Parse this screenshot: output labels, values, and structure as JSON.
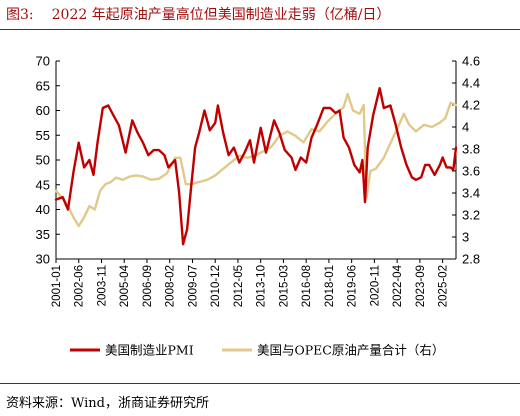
{
  "header": {
    "figure_label": "图3:",
    "title": "2022 年起原油产量高位但美国制造业走弱（亿桶/日）"
  },
  "footer": {
    "source": "资料来源：Wind，浙商证券研究所"
  },
  "colors": {
    "pmi": "#c00000",
    "oil": "#e0c98a",
    "rule": "#a50d0d"
  },
  "chart_data": {
    "type": "line",
    "title": "2022 年起原油产量高位但美国制造业走弱（亿桶/日）",
    "xlabel": "",
    "ylabel": "",
    "legend_position": "bottom",
    "grid": false,
    "x_ticks": [
      "2001-01",
      "2002-06",
      "2003-11",
      "2005-04",
      "2006-09",
      "2008-02",
      "2009-07",
      "2010-12",
      "2012-05",
      "2013-10",
      "2015-03",
      "2016-08",
      "2018-01",
      "2019-06",
      "2020-11",
      "2022-04",
      "2023-09",
      "2025-02"
    ],
    "x_range": [
      "2001-01",
      "2025-12"
    ],
    "y_left": {
      "min": 30,
      "max": 70,
      "ticks": [
        30,
        35,
        40,
        45,
        50,
        55,
        60,
        65,
        70
      ]
    },
    "y_right": {
      "min": 2.8,
      "max": 4.6,
      "ticks": [
        2.8,
        3,
        3.2,
        3.4,
        3.6,
        3.8,
        4,
        4.2,
        4.4,
        4.6
      ]
    },
    "series": [
      {
        "name": "美国制造业PMI",
        "axis": "left",
        "points": [
          [
            "2001-01",
            42.0
          ],
          [
            "2001-06",
            42.5
          ],
          [
            "2001-10",
            40.0
          ],
          [
            "2002-02",
            47.5
          ],
          [
            "2002-06",
            53.5
          ],
          [
            "2002-10",
            48.5
          ],
          [
            "2003-02",
            50.0
          ],
          [
            "2003-05",
            47.0
          ],
          [
            "2003-08",
            53.5
          ],
          [
            "2003-12",
            60.5
          ],
          [
            "2004-04",
            61.0
          ],
          [
            "2004-08",
            59.0
          ],
          [
            "2004-12",
            57.0
          ],
          [
            "2005-05",
            51.5
          ],
          [
            "2005-10",
            58.0
          ],
          [
            "2006-02",
            55.5
          ],
          [
            "2006-06",
            53.5
          ],
          [
            "2006-10",
            51.0
          ],
          [
            "2007-02",
            52.0
          ],
          [
            "2007-06",
            52.0
          ],
          [
            "2007-10",
            51.0
          ],
          [
            "2008-01",
            48.5
          ],
          [
            "2008-06",
            50.0
          ],
          [
            "2008-09",
            43.5
          ],
          [
            "2008-12",
            33.0
          ],
          [
            "2009-03",
            36.0
          ],
          [
            "2009-06",
            44.5
          ],
          [
            "2009-09",
            52.5
          ],
          [
            "2009-12",
            55.5
          ],
          [
            "2010-04",
            60.0
          ],
          [
            "2010-08",
            56.0
          ],
          [
            "2010-12",
            57.5
          ],
          [
            "2011-02",
            61.0
          ],
          [
            "2011-06",
            55.5
          ],
          [
            "2011-10",
            51.0
          ],
          [
            "2012-02",
            52.5
          ],
          [
            "2012-06",
            49.5
          ],
          [
            "2012-10",
            51.5
          ],
          [
            "2013-02",
            54.0
          ],
          [
            "2013-05",
            49.5
          ],
          [
            "2013-10",
            56.5
          ],
          [
            "2014-02",
            51.5
          ],
          [
            "2014-08",
            58.0
          ],
          [
            "2014-12",
            55.5
          ],
          [
            "2015-04",
            52.0
          ],
          [
            "2015-09",
            50.5
          ],
          [
            "2015-12",
            48.0
          ],
          [
            "2016-04",
            50.5
          ],
          [
            "2016-08",
            49.5
          ],
          [
            "2016-12",
            54.5
          ],
          [
            "2017-04",
            57.0
          ],
          [
            "2017-09",
            60.5
          ],
          [
            "2018-02",
            60.5
          ],
          [
            "2018-06",
            59.5
          ],
          [
            "2018-09",
            60.0
          ],
          [
            "2018-12",
            54.5
          ],
          [
            "2019-04",
            52.5
          ],
          [
            "2019-08",
            49.0
          ],
          [
            "2019-12",
            47.5
          ],
          [
            "2020-02",
            50.0
          ],
          [
            "2020-04",
            41.5
          ],
          [
            "2020-06",
            52.5
          ],
          [
            "2020-10",
            59.0
          ],
          [
            "2021-03",
            64.5
          ],
          [
            "2021-06",
            60.5
          ],
          [
            "2021-11",
            61.0
          ],
          [
            "2022-03",
            57.0
          ],
          [
            "2022-07",
            52.5
          ],
          [
            "2022-11",
            49.0
          ],
          [
            "2023-03",
            46.5
          ],
          [
            "2023-06",
            46.0
          ],
          [
            "2023-10",
            46.5
          ],
          [
            "2024-01",
            49.0
          ],
          [
            "2024-04",
            49.0
          ],
          [
            "2024-08",
            47.0
          ],
          [
            "2024-12",
            49.0
          ],
          [
            "2025-02",
            50.5
          ],
          [
            "2025-05",
            48.5
          ],
          [
            "2025-08",
            48.5
          ],
          [
            "2025-10",
            48.0
          ],
          [
            "2025-12",
            52.5
          ]
        ]
      },
      {
        "name": "美国与OPEC原油产量合计（右）",
        "axis": "right",
        "points": [
          [
            "2001-01",
            3.42
          ],
          [
            "2001-06",
            3.35
          ],
          [
            "2001-10",
            3.28
          ],
          [
            "2002-02",
            3.18
          ],
          [
            "2002-06",
            3.1
          ],
          [
            "2002-10",
            3.18
          ],
          [
            "2003-02",
            3.28
          ],
          [
            "2003-06",
            3.25
          ],
          [
            "2003-10",
            3.42
          ],
          [
            "2004-02",
            3.48
          ],
          [
            "2004-06",
            3.5
          ],
          [
            "2004-10",
            3.54
          ],
          [
            "2005-03",
            3.52
          ],
          [
            "2005-08",
            3.55
          ],
          [
            "2006-01",
            3.56
          ],
          [
            "2006-06",
            3.55
          ],
          [
            "2006-12",
            3.52
          ],
          [
            "2007-06",
            3.53
          ],
          [
            "2007-12",
            3.58
          ],
          [
            "2008-06",
            3.72
          ],
          [
            "2008-10",
            3.72
          ],
          [
            "2009-02",
            3.48
          ],
          [
            "2009-06",
            3.48
          ],
          [
            "2009-12",
            3.5
          ],
          [
            "2010-06",
            3.52
          ],
          [
            "2010-12",
            3.56
          ],
          [
            "2011-06",
            3.62
          ],
          [
            "2011-12",
            3.68
          ],
          [
            "2012-06",
            3.74
          ],
          [
            "2012-12",
            3.72
          ],
          [
            "2013-06",
            3.74
          ],
          [
            "2013-12",
            3.78
          ],
          [
            "2014-06",
            3.82
          ],
          [
            "2014-12",
            3.92
          ],
          [
            "2015-06",
            3.96
          ],
          [
            "2015-12",
            3.92
          ],
          [
            "2016-06",
            3.86
          ],
          [
            "2016-12",
            3.98
          ],
          [
            "2017-06",
            3.96
          ],
          [
            "2017-12",
            4.05
          ],
          [
            "2018-06",
            4.12
          ],
          [
            "2018-12",
            4.18
          ],
          [
            "2019-03",
            4.3
          ],
          [
            "2019-07",
            4.15
          ],
          [
            "2019-12",
            4.12
          ],
          [
            "2020-03",
            4.2
          ],
          [
            "2020-05",
            3.35
          ],
          [
            "2020-08",
            3.6
          ],
          [
            "2020-12",
            3.62
          ],
          [
            "2021-06",
            3.72
          ],
          [
            "2021-12",
            3.88
          ],
          [
            "2022-04",
            3.98
          ],
          [
            "2022-09",
            4.12
          ],
          [
            "2023-01",
            4.02
          ],
          [
            "2023-06",
            3.96
          ],
          [
            "2023-12",
            4.02
          ],
          [
            "2024-06",
            4.0
          ],
          [
            "2024-12",
            4.04
          ],
          [
            "2025-04",
            4.08
          ],
          [
            "2025-08",
            4.22
          ],
          [
            "2025-12",
            4.2
          ]
        ]
      }
    ]
  }
}
